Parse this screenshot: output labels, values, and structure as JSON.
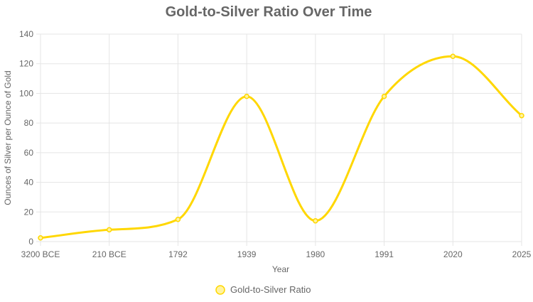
{
  "chart_data": {
    "type": "line",
    "title": "Gold-to-Silver Ratio Over Time",
    "xlabel": "Year",
    "ylabel": "Ounces of Silver per Ounce of Gold",
    "categories": [
      "3200 BCE",
      "210 BCE",
      "1792",
      "1939",
      "1980",
      "1991",
      "2020",
      "2025"
    ],
    "series": [
      {
        "name": "Gold-to-Silver Ratio",
        "values": [
          2.5,
          8,
          15,
          98,
          14,
          98,
          125,
          85
        ]
      }
    ],
    "ylim": [
      0,
      140
    ],
    "yticks": [
      0,
      20,
      40,
      60,
      80,
      100,
      120,
      140
    ],
    "grid": true,
    "legend_position": "bottom",
    "colors": {
      "line": "#ffd700",
      "point_fill": "#fff3a0",
      "grid": "#e5e5e5",
      "text": "#666666"
    }
  }
}
